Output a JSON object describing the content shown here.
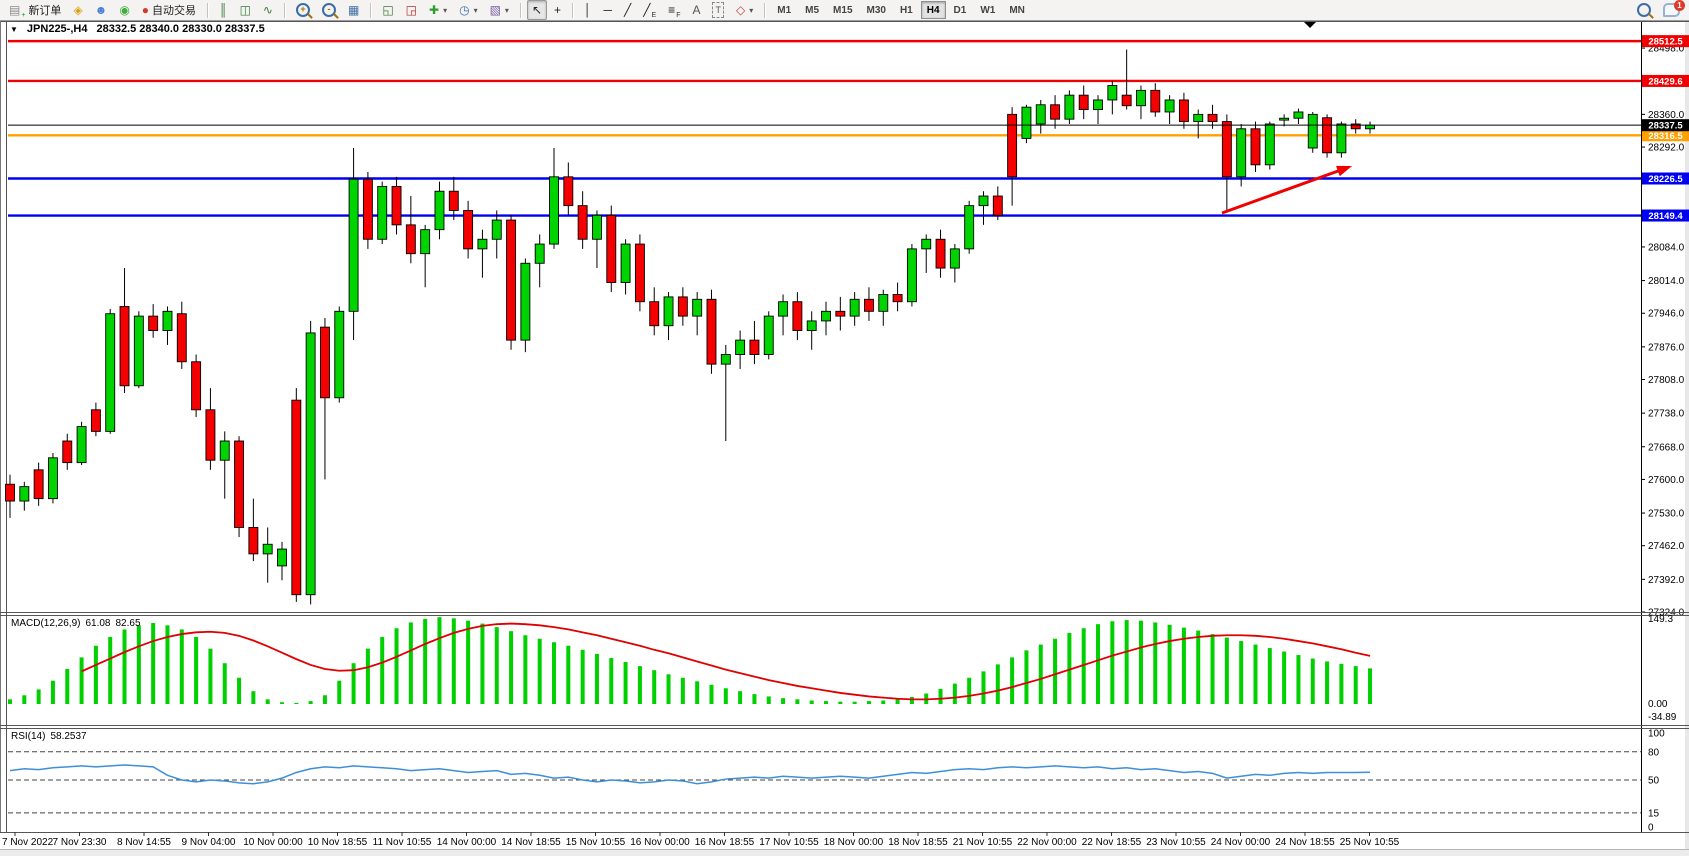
{
  "toolbar": {
    "dropdown_glyph": "▾",
    "notification_count": "1",
    "timeframes": [
      "M1",
      "M5",
      "M15",
      "M30",
      "H1",
      "H4",
      "D1",
      "W1",
      "MN"
    ],
    "active_timeframe": "H4",
    "items": [
      {
        "kind": "button",
        "name": "new-order-button",
        "icon": "new-order-icon",
        "glyph": "▤",
        "glyph_color": "#8a8a8a",
        "sub": "+",
        "sub_color": "#009a00",
        "label": "新订单"
      },
      {
        "kind": "icon",
        "name": "metaquotes-button",
        "icon": "gold-cube-icon",
        "glyph": "◈",
        "glyph_color": "#d9a21a"
      },
      {
        "kind": "icon",
        "name": "market-button",
        "icon": "person-icon",
        "glyph": "☻",
        "glyph_color": "#4a7fd4"
      },
      {
        "kind": "icon",
        "name": "signals-button",
        "icon": "signal-icon",
        "glyph": "◉",
        "glyph_color": "#3fae3f"
      },
      {
        "kind": "button",
        "name": "autotrading-button",
        "icon": "autotrade-icon",
        "glyph": "●",
        "glyph_color": "#d03a2f",
        "label": "自动交易"
      },
      {
        "kind": "sep"
      },
      {
        "kind": "icon",
        "name": "bar-chart-mode-button",
        "icon": "bar-chart-icon",
        "glyph": "║",
        "glyph_color": "#3a7a3a"
      },
      {
        "kind": "icon",
        "name": "candle-chart-mode-button",
        "icon": "candlestick-icon",
        "glyph": "◫",
        "glyph_color": "#3a7a3a"
      },
      {
        "kind": "icon",
        "name": "line-chart-mode-button",
        "icon": "line-chart-icon",
        "glyph": "∿",
        "glyph_color": "#3a7a3a"
      },
      {
        "kind": "sep"
      },
      {
        "kind": "magnifier",
        "name": "zoom-in-button",
        "icon": "zoom-in-icon",
        "sign": "+"
      },
      {
        "kind": "magnifier",
        "name": "zoom-out-button",
        "icon": "zoom-out-icon",
        "sign": "-"
      },
      {
        "kind": "icon",
        "name": "tile-windows-button",
        "icon": "tile-windows-icon",
        "glyph": "▦",
        "glyph_color": "#3a6ea5"
      },
      {
        "kind": "sep"
      },
      {
        "kind": "icon",
        "name": "indicators-window-button",
        "icon": "indicator-window-icon",
        "glyph": "◱",
        "glyph_color": "#3a7a3a"
      },
      {
        "kind": "icon",
        "name": "new-chart-window-button",
        "icon": "chart-window-icon",
        "glyph": "◲",
        "glyph_color": "#b03030"
      },
      {
        "kind": "icon",
        "name": "add-indicator-button",
        "icon": "add-indicator-icon",
        "glyph": "✚",
        "glyph_color": "#2e9e2e",
        "dropdown": true
      },
      {
        "kind": "icon",
        "name": "period-button",
        "icon": "clock-icon",
        "glyph": "◷",
        "glyph_color": "#3a6ea5",
        "dropdown": true
      },
      {
        "kind": "icon",
        "name": "template-button",
        "icon": "template-icon",
        "glyph": "▧",
        "glyph_color": "#7a5fa0",
        "dropdown": true
      },
      {
        "kind": "sep"
      },
      {
        "kind": "icon",
        "name": "cursor-tool-button",
        "icon": "cursor-icon",
        "glyph": "↖",
        "glyph_color": "#222222",
        "active": true
      },
      {
        "kind": "icon",
        "name": "crosshair-tool-button",
        "icon": "crosshair-icon",
        "glyph": "+",
        "glyph_color": "#222222"
      },
      {
        "kind": "sep"
      },
      {
        "kind": "icon",
        "name": "vline-tool-button",
        "icon": "vertical-line-icon",
        "glyph": "│",
        "glyph_color": "#222222"
      },
      {
        "kind": "icon",
        "name": "hline-tool-button",
        "icon": "horizontal-line-icon",
        "glyph": "─",
        "glyph_color": "#222222"
      },
      {
        "kind": "icon",
        "name": "trendline-tool-button",
        "icon": "trendline-icon",
        "glyph": "╱",
        "glyph_color": "#222222"
      },
      {
        "kind": "icon",
        "name": "channel-tool-button",
        "icon": "channel-icon",
        "glyph": "╱",
        "glyph_color": "#222222",
        "sub": "E",
        "sub_color": "#333333"
      },
      {
        "kind": "icon",
        "name": "fibonacci-tool-button",
        "icon": "fibonacci-icon",
        "glyph": "≡",
        "glyph_color": "#222222",
        "sub": "F",
        "sub_color": "#333333"
      },
      {
        "kind": "icon",
        "name": "text-tool-button",
        "icon": "text-icon",
        "glyph": "A",
        "glyph_color": "#555555"
      },
      {
        "kind": "icon",
        "name": "label-tool-button",
        "icon": "text-label-icon",
        "glyph": "T",
        "glyph_color": "#555555",
        "boxed": true
      },
      {
        "kind": "icon",
        "name": "shapes-tool-button",
        "icon": "shapes-icon",
        "glyph": "◇",
        "glyph_color": "#c04040",
        "dropdown": true
      },
      {
        "kind": "sep"
      },
      {
        "kind": "tf"
      },
      {
        "kind": "spacer"
      },
      {
        "kind": "magnifier",
        "name": "search-button",
        "icon": "search-icon",
        "sign": ""
      },
      {
        "kind": "chat",
        "name": "chat-button",
        "icon": "chat-bubble-icon"
      }
    ]
  },
  "chart": {
    "symbol_period": "JPN225-,H4",
    "ohlc_text": "28332.5 28340.0 28330.0 28337.5",
    "collapse_glyph": "▼"
  },
  "chart_data": {
    "type": "candlestick",
    "title": "JPN225-,H4",
    "axis": {
      "price_min": 27324,
      "price_max": 28519,
      "grid": false
    },
    "colors": {
      "up": "#00d400",
      "down": "#f40000",
      "wick": "#000000",
      "macd_histogram": "#00cf00",
      "macd_signal": "#e00000",
      "rsi_line": "#3e8fd8"
    },
    "price_ticks": [
      "28498.0",
      "28360.0",
      "28292.0",
      "28084.0",
      "28014.0",
      "27946.0",
      "27876.0",
      "27808.0",
      "27738.0",
      "27668.0",
      "27600.0",
      "27530.0",
      "27462.0",
      "27392.0",
      "27324.0"
    ],
    "levels": [
      {
        "value": 28512.5,
        "label": "28512.5",
        "color": "#f00000"
      },
      {
        "value": 28429.6,
        "label": "28429.6",
        "color": "#f00000"
      },
      {
        "value": 28316.5,
        "label": "28316.5",
        "color": "#ffa000"
      },
      {
        "value": 28226.5,
        "label": "28226.5",
        "color": "#0000f0"
      },
      {
        "value": 28149.4,
        "label": "28149.4",
        "color": "#0000f0"
      }
    ],
    "current_price": {
      "value": 28337.5,
      "label": "28337.5",
      "color": "#000000"
    },
    "candles": [
      [
        27590,
        27610,
        27520,
        27555
      ],
      [
        27555,
        27595,
        27535,
        27585
      ],
      [
        27620,
        27635,
        27545,
        27560
      ],
      [
        27560,
        27655,
        27550,
        27645
      ],
      [
        27680,
        27695,
        27620,
        27635
      ],
      [
        27635,
        27720,
        27630,
        27710
      ],
      [
        27745,
        27760,
        27690,
        27700
      ],
      [
        27700,
        27955,
        27695,
        27945
      ],
      [
        27960,
        28040,
        27780,
        27795
      ],
      [
        27795,
        27950,
        27790,
        27940
      ],
      [
        27940,
        27965,
        27895,
        27910
      ],
      [
        27910,
        27960,
        27880,
        27950
      ],
      [
        27945,
        27970,
        27830,
        27845
      ],
      [
        27845,
        27860,
        27730,
        27745
      ],
      [
        27745,
        27790,
        27620,
        27640
      ],
      [
        27640,
        27700,
        27560,
        27680
      ],
      [
        27680,
        27690,
        27480,
        27500
      ],
      [
        27500,
        27560,
        27430,
        27445
      ],
      [
        27445,
        27500,
        27385,
        27465
      ],
      [
        27420,
        27470,
        27390,
        27455
      ],
      [
        27765,
        27790,
        27345,
        27360
      ],
      [
        27360,
        27930,
        27340,
        27905
      ],
      [
        27917,
        27936,
        27600,
        27770
      ],
      [
        27770,
        27960,
        27760,
        27950
      ],
      [
        27950,
        28290,
        27890,
        28225
      ],
      [
        28225,
        28240,
        28080,
        28100
      ],
      [
        28100,
        28220,
        28090,
        28210
      ],
      [
        28210,
        28230,
        28110,
        28130
      ],
      [
        28130,
        28190,
        28050,
        28070
      ],
      [
        28070,
        28130,
        28000,
        28120
      ],
      [
        28120,
        28220,
        28100,
        28200
      ],
      [
        28200,
        28230,
        28140,
        28160
      ],
      [
        28160,
        28180,
        28060,
        28080
      ],
      [
        28080,
        28120,
        28020,
        28100
      ],
      [
        28100,
        28160,
        28060,
        28140
      ],
      [
        28140,
        28150,
        27870,
        27890
      ],
      [
        27890,
        28060,
        27865,
        28050
      ],
      [
        28050,
        28110,
        28000,
        28090
      ],
      [
        28090,
        28290,
        28080,
        28230
      ],
      [
        28230,
        28260,
        28150,
        28170
      ],
      [
        28170,
        28200,
        28080,
        28100
      ],
      [
        28100,
        28160,
        28040,
        28150
      ],
      [
        28150,
        28170,
        27990,
        28010
      ],
      [
        28010,
        28100,
        27985,
        28090
      ],
      [
        28090,
        28110,
        27950,
        27970
      ],
      [
        27970,
        28000,
        27900,
        27920
      ],
      [
        27920,
        27990,
        27890,
        27980
      ],
      [
        27980,
        28000,
        27920,
        27940
      ],
      [
        27940,
        27990,
        27900,
        27975
      ],
      [
        27975,
        27995,
        27820,
        27840
      ],
      [
        27840,
        27880,
        27680,
        27860
      ],
      [
        27860,
        27910,
        27830,
        27890
      ],
      [
        27890,
        27930,
        27840,
        27860
      ],
      [
        27860,
        27950,
        27850,
        27940
      ],
      [
        27940,
        27985,
        27900,
        27970
      ],
      [
        27970,
        27990,
        27890,
        27910
      ],
      [
        27910,
        27950,
        27870,
        27930
      ],
      [
        27930,
        27970,
        27900,
        27950
      ],
      [
        27950,
        27980,
        27910,
        27940
      ],
      [
        27940,
        27990,
        27920,
        27975
      ],
      [
        27975,
        28000,
        27930,
        27950
      ],
      [
        27950,
        27995,
        27920,
        27985
      ],
      [
        27985,
        28010,
        27950,
        27970
      ],
      [
        27970,
        28090,
        27960,
        28080
      ],
      [
        28080,
        28110,
        28030,
        28100
      ],
      [
        28100,
        28120,
        28020,
        28040
      ],
      [
        28040,
        28090,
        28010,
        28080
      ],
      [
        28080,
        28180,
        28070,
        28170
      ],
      [
        28170,
        28200,
        28130,
        28190
      ],
      [
        28190,
        28210,
        28140,
        28150
      ],
      [
        28360,
        28375,
        28170,
        28230
      ],
      [
        28310,
        28380,
        28300,
        28375
      ],
      [
        28340,
        28390,
        28320,
        28380
      ],
      [
        28380,
        28400,
        28330,
        28350
      ],
      [
        28350,
        28410,
        28340,
        28400
      ],
      [
        28400,
        28420,
        28350,
        28370
      ],
      [
        28370,
        28400,
        28340,
        28390
      ],
      [
        28390,
        28430,
        28360,
        28420
      ],
      [
        28400,
        28495,
        28370,
        28378
      ],
      [
        28378,
        28420,
        28350,
        28410
      ],
      [
        28410,
        28425,
        28355,
        28365
      ],
      [
        28365,
        28400,
        28340,
        28390
      ],
      [
        28390,
        28405,
        28330,
        28345
      ],
      [
        28345,
        28370,
        28310,
        28360
      ],
      [
        28360,
        28380,
        28330,
        28345
      ],
      [
        28345,
        28360,
        28160,
        28230
      ],
      [
        28230,
        28340,
        28210,
        28330
      ],
      [
        28330,
        28345,
        28240,
        28255
      ],
      [
        28255,
        28345,
        28245,
        28340
      ],
      [
        28348,
        28360,
        28335,
        28352
      ],
      [
        28352,
        28372,
        28340,
        28365
      ],
      [
        28290,
        28365,
        28280,
        28360
      ],
      [
        28353,
        28360,
        28270,
        28280
      ],
      [
        28280,
        28345,
        28270,
        28340
      ],
      [
        28340,
        28350,
        28320,
        28330
      ],
      [
        28330,
        28345,
        28320,
        28337.5
      ]
    ],
    "dates": [
      "7 Nov 2022",
      "7 Nov 23:30",
      "8 Nov 14:55",
      "9 Nov 04:00",
      "10 Nov 00:00",
      "10 Nov 18:55",
      "11 Nov 10:55",
      "14 Nov 00:00",
      "14 Nov 18:55",
      "15 Nov 10:55",
      "16 Nov 00:00",
      "16 Nov 18:55",
      "17 Nov 10:55",
      "18 Nov 00:00",
      "18 Nov 18:55",
      "21 Nov 10:55",
      "22 Nov 00:00",
      "22 Nov 18:55",
      "23 Nov 10:55",
      "24 Nov 00:00",
      "24 Nov 18:55",
      "25 Nov 10:55"
    ],
    "macd": {
      "label": "MACD(12,26,9)",
      "main": "61.08",
      "signal": "82.65",
      "axis_max": "149.3",
      "axis_zero": "0.00",
      "axis_min": "-34.89",
      "scale_max": 149.3,
      "histogram": [
        8,
        15,
        25,
        40,
        60,
        80,
        100,
        115,
        128,
        135,
        139,
        135,
        128,
        115,
        95,
        70,
        45,
        22,
        8,
        3,
        2,
        5,
        15,
        40,
        70,
        95,
        115,
        130,
        140,
        146,
        149,
        147,
        143,
        138,
        132,
        125,
        118,
        112,
        106,
        100,
        93,
        86,
        79,
        72,
        65,
        58,
        51,
        45,
        39,
        33,
        27,
        22,
        17,
        13,
        10,
        8,
        6,
        5,
        4,
        4,
        5,
        6,
        8,
        12,
        18,
        26,
        35,
        45,
        56,
        68,
        80,
        92,
        102,
        112,
        122,
        130,
        137,
        142,
        144,
        143,
        140,
        136,
        131,
        126,
        120,
        114,
        108,
        102,
        96,
        90,
        84,
        78,
        73,
        69,
        65,
        61.08
      ],
      "signal_line": [
        null,
        null,
        null,
        null,
        null,
        56,
        67,
        78,
        89,
        99,
        108,
        115,
        120,
        123,
        124,
        122,
        117,
        109,
        99,
        88,
        77,
        67,
        60,
        57,
        58,
        63,
        71,
        81,
        92,
        103,
        113,
        122,
        129,
        134,
        137,
        138,
        137,
        135,
        132,
        128,
        123,
        118,
        112,
        106,
        100,
        93,
        87,
        80,
        73,
        66,
        59,
        53,
        47,
        41,
        36,
        31,
        27,
        23,
        19,
        16,
        13,
        11,
        9,
        8,
        8,
        9,
        11,
        14,
        18,
        23,
        29,
        36,
        43,
        51,
        59,
        67,
        75,
        83,
        90,
        97,
        103,
        108,
        112,
        115,
        117,
        118,
        118,
        117,
        115,
        112,
        108,
        104,
        99,
        94,
        88,
        82.65
      ]
    },
    "rsi": {
      "label": "RSI(14)",
      "value": "58.2537",
      "axis_labels": [
        "100",
        "80",
        "50",
        "15",
        "0"
      ],
      "dashed_levels": [
        80,
        50,
        15
      ],
      "values": [
        60,
        62,
        61,
        63,
        64,
        65,
        64,
        65,
        66,
        65,
        64,
        55,
        50,
        48,
        50,
        49,
        47,
        46,
        48,
        52,
        58,
        62,
        64,
        63,
        65,
        64,
        63,
        62,
        60,
        61,
        62,
        60,
        58,
        59,
        60,
        56,
        57,
        55,
        52,
        53,
        50,
        48,
        50,
        49,
        47,
        48,
        50,
        49,
        46,
        48,
        51,
        52,
        53,
        52,
        54,
        53,
        52,
        53,
        54,
        53,
        52,
        54,
        56,
        58,
        57,
        59,
        61,
        62,
        61,
        63,
        64,
        63,
        64,
        65,
        64,
        63,
        64,
        62,
        63,
        61,
        62,
        60,
        58,
        59,
        57,
        52,
        54,
        56,
        55,
        57,
        58,
        57,
        58,
        58,
        58,
        58.25
      ],
      "period_value_text": "58.2537"
    },
    "annotations": [
      {
        "type": "arrow",
        "from": [
          1222,
          213
        ],
        "to": [
          1352,
          166
        ],
        "color": "#f00000"
      }
    ]
  }
}
